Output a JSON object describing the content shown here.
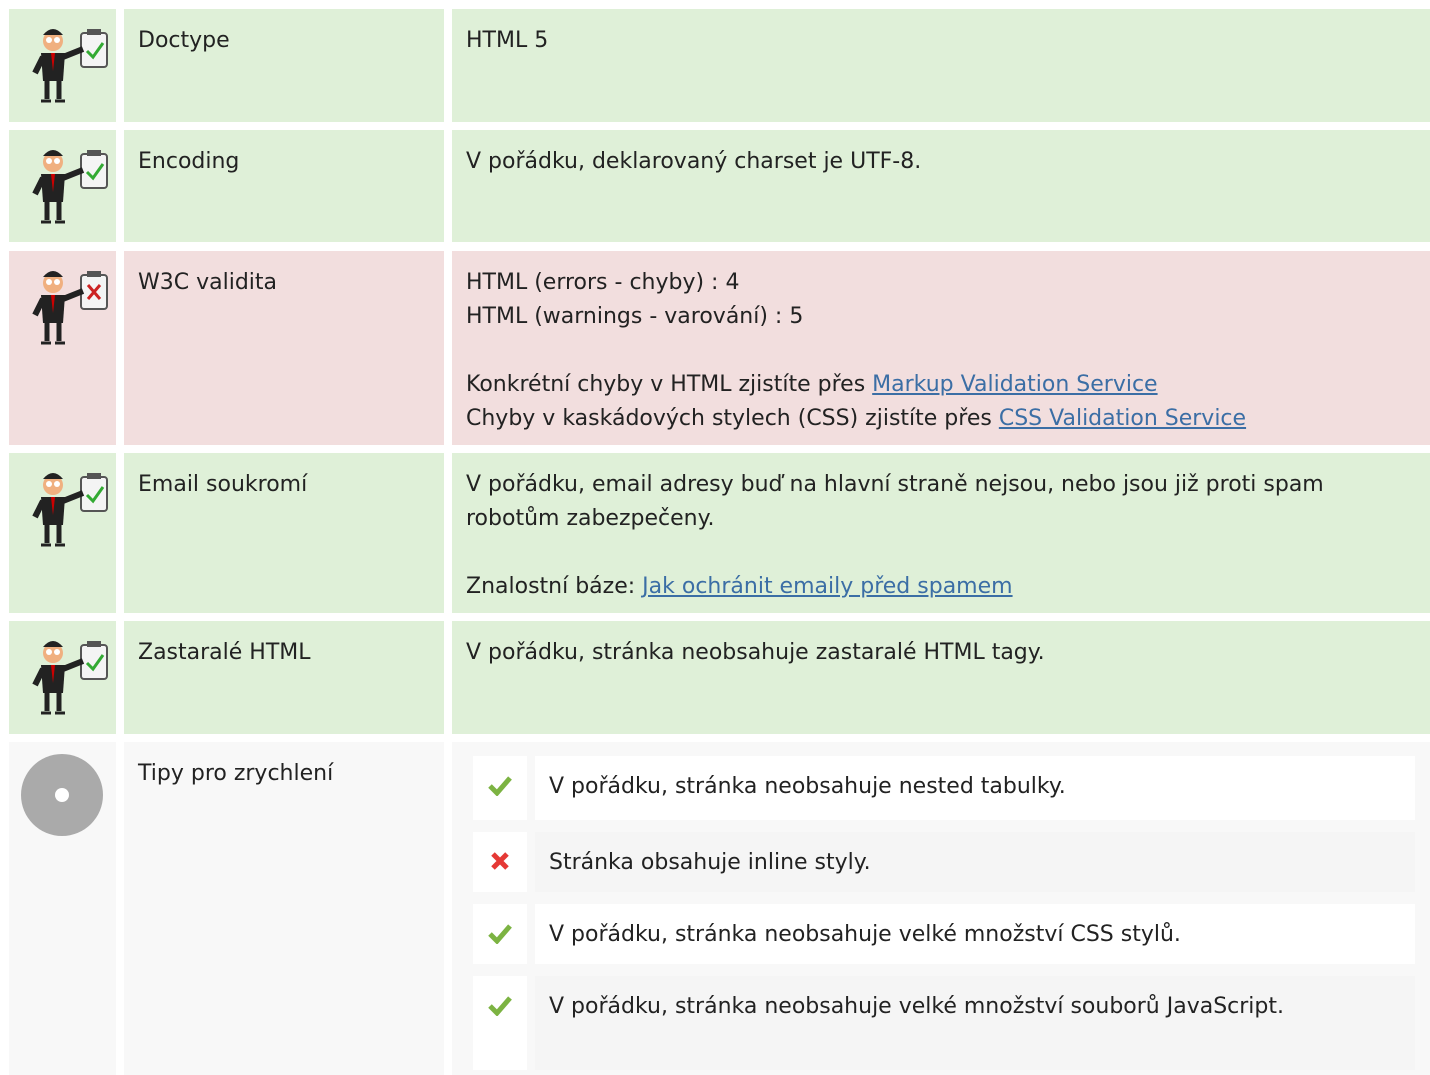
{
  "rows": [
    {
      "label": "Doctype",
      "text": "HTML 5"
    },
    {
      "label": "Encoding",
      "text": "V pořádku, deklarovaný charset je UTF-8."
    },
    {
      "label": "W3C validita",
      "lines": [
        "HTML (errors - chyby) : 4",
        "HTML (warnings - varování) : 5"
      ],
      "links": [
        {
          "text": "Konkrétní chyby v HTML zjistíte přes",
          "link": "Markup Validation Service"
        },
        {
          "text": "Chyby v kaskádových stylech (CSS) zjistíte přes",
          "link": "CSS Validation Service"
        }
      ]
    },
    {
      "label": "Email soukromí",
      "text": "V pořádku, email adresy buď na hlavní straně nejsou, nebo jsou již proti spam robotům zabezpečeny.",
      "links": [
        {
          "text": "Znalostní báze:",
          "link": "Jak ochránit emaily před spamem"
        }
      ]
    },
    {
      "label": "Zastaralé HTML",
      "text": "V pořádku, stránka neobsahuje zastaralé HTML tagy."
    },
    {
      "label": "Tipy pro zrychlení",
      "tips": [
        "V pořádku, stránka neobsahuje nested tabulky.",
        "Stránka obsahuje inline styly.",
        "V pořádku, stránka neobsahuje velké množství CSS stylů.",
        "V pořádku, stránka neobsahuje velké množství souborů JavaScript."
      ]
    }
  ]
}
